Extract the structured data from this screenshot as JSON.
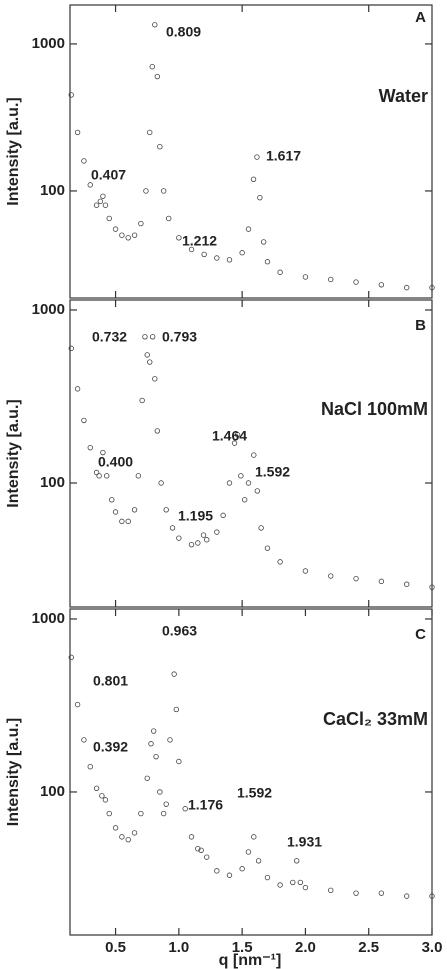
{
  "chart_data": [
    {
      "type": "scatter",
      "panel_label": "A",
      "title": "Water",
      "ylabel": "Intensity [a.u.]",
      "ylog": true,
      "color": "#444444",
      "xlim": [
        0.14,
        3.0
      ],
      "ylim": [
        18.7,
        1840
      ],
      "xticks": [
        0.5,
        1.5,
        2.5
      ],
      "yticks": [
        100,
        1000
      ],
      "x": [
        0.15,
        0.2,
        0.25,
        0.3,
        0.35,
        0.38,
        0.4,
        0.42,
        0.45,
        0.5,
        0.55,
        0.6,
        0.65,
        0.7,
        0.74,
        0.77,
        0.79,
        0.81,
        0.83,
        0.85,
        0.88,
        0.92,
        1.0,
        1.1,
        1.2,
        1.3,
        1.4,
        1.5,
        1.55,
        1.59,
        1.617,
        1.64,
        1.67,
        1.7,
        1.8,
        2.0,
        2.2,
        2.4,
        2.6,
        2.8,
        3.0
      ],
      "values": [
        450,
        250,
        160,
        110,
        80,
        85,
        92,
        80,
        65,
        55,
        50,
        48,
        50,
        60,
        100,
        250,
        700,
        1350,
        600,
        200,
        100,
        65,
        48,
        40,
        37,
        35,
        34,
        38,
        55,
        120,
        170,
        90,
        45,
        33,
        28,
        26,
        25,
        24,
        23,
        22,
        22
      ],
      "peaks": [
        0.407,
        0.809,
        1.212,
        1.617
      ]
    },
    {
      "type": "scatter",
      "panel_label": "B",
      "title": "NaCl 100mM",
      "ylabel": "Intensity [a.u.]",
      "ylog": true,
      "color": "#444444",
      "xlim": [
        0.14,
        3.0
      ],
      "ylim": [
        19.2,
        1142
      ],
      "xticks": [
        0.5,
        1.5,
        2.5
      ],
      "yticks": [
        100,
        1000
      ],
      "x": [
        0.15,
        0.2,
        0.25,
        0.3,
        0.35,
        0.37,
        0.4,
        0.43,
        0.47,
        0.5,
        0.55,
        0.6,
        0.65,
        0.68,
        0.71,
        0.732,
        0.75,
        0.77,
        0.793,
        0.81,
        0.83,
        0.86,
        0.9,
        0.95,
        1.0,
        1.1,
        1.15,
        1.195,
        1.22,
        1.3,
        1.35,
        1.4,
        1.44,
        1.464,
        1.49,
        1.52,
        1.55,
        1.592,
        1.62,
        1.65,
        1.7,
        1.8,
        2.0,
        2.2,
        2.4,
        2.6,
        2.8,
        3.0
      ],
      "values": [
        600,
        350,
        230,
        160,
        115,
        110,
        150,
        110,
        80,
        68,
        60,
        60,
        70,
        110,
        300,
        700,
        550,
        500,
        700,
        400,
        200,
        100,
        70,
        55,
        48,
        44,
        45,
        50,
        47,
        52,
        65,
        100,
        170,
        190,
        110,
        80,
        100,
        145,
        90,
        55,
        42,
        35,
        31,
        29,
        28,
        27,
        26,
        25
      ],
      "peaks": [
        0.732,
        0.793,
        {
          "value": 0.4,
          "label": "0.400"
        },
        1.195,
        1.464,
        1.592
      ]
    },
    {
      "type": "scatter",
      "panel_label": "C",
      "title": "CaCl₂ 33mM",
      "ylabel": "Intensity [a.u.]",
      "xlabel": "q [nm⁻¹]",
      "ylog": true,
      "color": "#444444",
      "xlim": [
        0.14,
        3.0
      ],
      "ylim": [
        14.9,
        1142
      ],
      "xticks": [
        0.5,
        {
          "value": 1,
          "label": "1.0"
        },
        1.5,
        {
          "value": 2,
          "label": "2.0"
        },
        2.5,
        {
          "value": 3,
          "label": "3.0"
        }
      ],
      "yticks": [
        100,
        1000
      ],
      "x": [
        0.15,
        0.2,
        0.25,
        0.3,
        0.35,
        0.392,
        0.42,
        0.45,
        0.5,
        0.55,
        0.6,
        0.65,
        0.7,
        0.75,
        0.78,
        0.801,
        0.82,
        0.85,
        0.88,
        0.9,
        0.93,
        0.963,
        0.98,
        1.0,
        1.05,
        1.1,
        1.15,
        1.176,
        1.22,
        1.3,
        1.4,
        1.5,
        1.55,
        1.592,
        1.63,
        1.7,
        1.8,
        1.9,
        1.931,
        1.96,
        2.0,
        2.2,
        2.4,
        2.6,
        2.8,
        3.0
      ],
      "values": [
        600,
        320,
        200,
        140,
        105,
        95,
        90,
        75,
        62,
        55,
        53,
        58,
        75,
        120,
        190,
        225,
        160,
        100,
        75,
        85,
        200,
        480,
        300,
        150,
        80,
        55,
        47,
        46,
        42,
        35,
        33,
        36,
        45,
        55,
        40,
        32,
        29,
        30,
        40,
        30,
        28,
        27,
        26,
        26,
        25,
        25
      ],
      "peaks": [
        0.801,
        0.963,
        0.392,
        1.176,
        1.592,
        1.931
      ]
    }
  ]
}
